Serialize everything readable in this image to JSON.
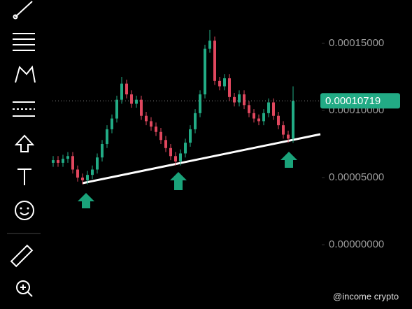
{
  "chart_data": {
    "type": "candlestick",
    "open": [
      6.1e-05,
      6.3e-05,
      6.1e-05,
      6.4e-05,
      6.6e-05,
      5.6e-05,
      5e-05,
      4.8e-05,
      5.2e-05,
      5.6e-05,
      6.5e-05,
      7.5e-05,
      8.6e-05,
      9.4e-05,
      0.000108,
      0.00012,
      0.000112,
      0.000105,
      0.000108,
      9.6e-05,
      9.2e-05,
      8.8e-05,
      8.4e-05,
      7.8e-05,
      7.2e-05,
      6.6e-05,
      6.2e-05,
      6.8e-05,
      7.6e-05,
      8.6e-05,
      9.8e-05,
      0.000112,
      0.000146,
      0.000152,
      0.000122,
      0.000118,
      0.000124,
      0.00011,
      0.000106,
      0.000112,
      0.000104,
      9.8e-05,
      9.4e-05,
      9.2e-05,
      9.8e-05,
      0.000106,
      9.6e-05,
      8.9e-05,
      8.2e-05,
      7.9e-05
    ],
    "high": [
      6.6e-05,
      6.6e-05,
      6.7e-05,
      6.9e-05,
      6.9e-05,
      5.9e-05,
      5.3e-05,
      5.5e-05,
      5.9e-05,
      6.8e-05,
      7.8e-05,
      8.9e-05,
      9.7e-05,
      0.000111,
      0.000125,
      0.000123,
      0.000115,
      0.000111,
      0.000111,
      9.9e-05,
      9.5e-05,
      9.1e-05,
      8.7e-05,
      8.1e-05,
      7.5e-05,
      6.9e-05,
      7.1e-05,
      7.9e-05,
      8.9e-05,
      0.000101,
      0.000115,
      0.000149,
      0.00016,
      0.000155,
      0.000125,
      0.000127,
      0.000127,
      0.000113,
      0.000115,
      0.000115,
      0.000107,
      0.000101,
      9.7e-05,
      0.000101,
      0.000109,
      0.000109,
      9.9e-05,
      9.2e-05,
      8.5e-05,
      0.000118
    ],
    "low": [
      5.8e-05,
      5.8e-05,
      5.8e-05,
      6.1e-05,
      5.3e-05,
      4.7e-05,
      4.5e-05,
      4.5e-05,
      4.9e-05,
      5.3e-05,
      6.2e-05,
      7.2e-05,
      8.3e-05,
      9.1e-05,
      0.000105,
      0.000109,
      0.000102,
      0.000102,
      9.3e-05,
      8.9e-05,
      8.5e-05,
      8.1e-05,
      7.5e-05,
      6.9e-05,
      6.3e-05,
      5.9e-05,
      5.9e-05,
      6.5e-05,
      7.3e-05,
      8.3e-05,
      9.5e-05,
      0.000109,
      0.000143,
      0.000119,
      0.000115,
      0.000115,
      0.000107,
      0.000103,
      0.000103,
      0.000101,
      9.5e-05,
      9.1e-05,
      8.9e-05,
      8.9e-05,
      9.5e-05,
      9.3e-05,
      8.6e-05,
      7.9e-05,
      7.6e-05,
      7.6e-05
    ],
    "close": [
      6.3e-05,
      6.1e-05,
      6.4e-05,
      6.6e-05,
      5.6e-05,
      5e-05,
      4.8e-05,
      5.2e-05,
      5.6e-05,
      6.5e-05,
      7.5e-05,
      8.6e-05,
      9.4e-05,
      0.000108,
      0.00012,
      0.000112,
      0.000105,
      0.000108,
      9.6e-05,
      9.2e-05,
      8.8e-05,
      8.4e-05,
      7.8e-05,
      7.2e-05,
      6.6e-05,
      6.2e-05,
      6.8e-05,
      7.6e-05,
      8.6e-05,
      9.8e-05,
      0.000112,
      0.000146,
      0.000152,
      0.000122,
      0.000118,
      0.000124,
      0.00011,
      0.000106,
      0.000112,
      0.000104,
      9.8e-05,
      9.4e-05,
      9.2e-05,
      9.8e-05,
      0.000106,
      9.6e-05,
      8.9e-05,
      8.2e-05,
      7.9e-05,
      0.00010719
    ],
    "up_color": "#22ab85",
    "down_color": "#e0475e",
    "ylim": [
      -4.79e-05,
      0.0001823
    ],
    "yticks": [
      {
        "value": 0.00015,
        "label": "0.00015000"
      },
      {
        "value": 0.0001,
        "label": "0.00010000"
      },
      {
        "value": 5e-05,
        "label": "0.00005000"
      },
      {
        "value": 0,
        "label": "0.00000000"
      }
    ],
    "last_price": {
      "value": 0.00010719,
      "label": "0.00010719"
    },
    "watermark": "@income crypto"
  }
}
